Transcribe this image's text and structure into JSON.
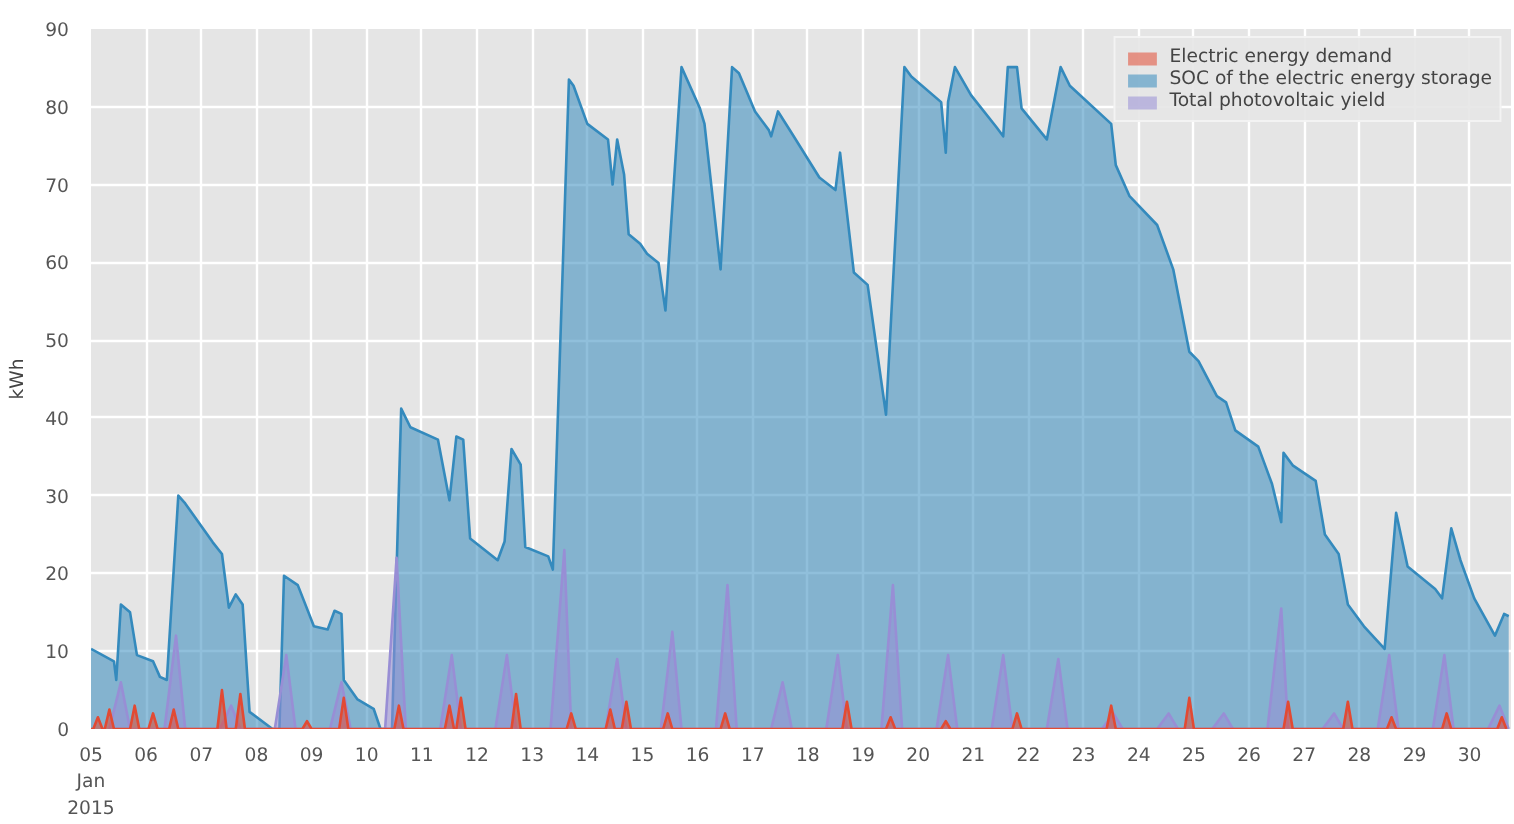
{
  "chart_data": {
    "type": "area",
    "ylabel": "kWh",
    "xlim": [
      "2015-01-05T00:00",
      "2015-01-30T18:00"
    ],
    "ylim": [
      0,
      90
    ],
    "yticks": [
      0,
      10,
      20,
      30,
      40,
      50,
      60,
      70,
      80,
      90
    ],
    "xticks": [
      {
        "value": "2015-01-05",
        "label": "05\nJan\n2015"
      },
      {
        "value": "2015-01-06",
        "label": "06"
      },
      {
        "value": "2015-01-07",
        "label": "07"
      },
      {
        "value": "2015-01-08",
        "label": "08"
      },
      {
        "value": "2015-01-09",
        "label": "09"
      },
      {
        "value": "2015-01-10",
        "label": "10"
      },
      {
        "value": "2015-01-11",
        "label": "11"
      },
      {
        "value": "2015-01-12",
        "label": "12"
      },
      {
        "value": "2015-01-13",
        "label": "13"
      },
      {
        "value": "2015-01-14",
        "label": "14"
      },
      {
        "value": "2015-01-15",
        "label": "15"
      },
      {
        "value": "2015-01-16",
        "label": "16"
      },
      {
        "value": "2015-01-17",
        "label": "17"
      },
      {
        "value": "2015-01-18",
        "label": "18"
      },
      {
        "value": "2015-01-19",
        "label": "19"
      },
      {
        "value": "2015-01-20",
        "label": "20"
      },
      {
        "value": "2015-01-21",
        "label": "21"
      },
      {
        "value": "2015-01-22",
        "label": "22"
      },
      {
        "value": "2015-01-23",
        "label": "23"
      },
      {
        "value": "2015-01-24",
        "label": "24"
      },
      {
        "value": "2015-01-25",
        "label": "25"
      },
      {
        "value": "2015-01-26",
        "label": "26"
      },
      {
        "value": "2015-01-27",
        "label": "27"
      },
      {
        "value": "2015-01-28",
        "label": "28"
      },
      {
        "value": "2015-01-29",
        "label": "29"
      },
      {
        "value": "2015-01-30",
        "label": "30"
      }
    ],
    "grid": true,
    "legend": "top right",
    "series": [
      {
        "name": "Electric energy demand",
        "color": "#e24a33",
        "x": [
          "2015-01-05T00:00",
          "2015-01-05T01:00",
          "2015-01-05T03:00",
          "2015-01-05T05:00",
          "2015-01-05T06:00",
          "2015-01-05T08:00",
          "2015-01-05T10:00",
          "2015-01-05T17:00",
          "2015-01-05T19:00",
          "2015-01-05T21:00",
          "2015-01-06T01:00",
          "2015-01-06T03:00",
          "2015-01-06T05:00",
          "2015-01-06T10:00",
          "2015-01-06T12:00",
          "2015-01-06T14:00",
          "2015-01-07T07:00",
          "2015-01-07T09:00",
          "2015-01-07T11:00",
          "2015-01-07T15:00",
          "2015-01-07T17:00",
          "2015-01-07T19:00",
          "2015-01-08T20:00",
          "2015-01-08T22:00",
          "2015-01-09T00:00",
          "2015-01-09T12:00",
          "2015-01-09T14:00",
          "2015-01-09T16:00",
          "2015-01-10T12:00",
          "2015-01-10T14:00",
          "2015-01-10T16:00",
          "2015-01-11T10:00",
          "2015-01-11T12:00",
          "2015-01-11T14:00",
          "2015-01-11T15:00",
          "2015-01-11T17:00",
          "2015-01-11T19:00",
          "2015-01-12T15:00",
          "2015-01-12T17:00",
          "2015-01-12T19:00",
          "2015-01-13T15:00",
          "2015-01-13T17:00",
          "2015-01-13T19:00",
          "2015-01-14T08:00",
          "2015-01-14T10:00",
          "2015-01-14T12:00",
          "2015-01-14T15:00",
          "2015-01-14T17:00",
          "2015-01-14T19:00",
          "2015-01-15T09:00",
          "2015-01-15T11:00",
          "2015-01-15T13:00",
          "2015-01-16T10:00",
          "2015-01-16T12:00",
          "2015-01-16T14:00",
          "2015-01-18T15:00",
          "2015-01-18T17:00",
          "2015-01-18T19:00",
          "2015-01-19T10:00",
          "2015-01-19T12:00",
          "2015-01-19T14:00",
          "2015-01-20T10:00",
          "2015-01-20T12:00",
          "2015-01-20T14:00",
          "2015-01-21T17:00",
          "2015-01-21T19:00",
          "2015-01-21T21:00",
          "2015-01-23T10:00",
          "2015-01-23T12:00",
          "2015-01-23T14:00",
          "2015-01-24T20:00",
          "2015-01-24T22:00",
          "2015-01-25T00:00",
          "2015-01-26T15:00",
          "2015-01-26T17:00",
          "2015-01-26T19:00",
          "2015-01-27T17:00",
          "2015-01-27T19:00",
          "2015-01-27T21:00",
          "2015-01-28T12:00",
          "2015-01-28T14:00",
          "2015-01-28T16:00",
          "2015-01-29T12:00",
          "2015-01-29T14:00",
          "2015-01-29T16:00",
          "2015-01-30T12:00",
          "2015-01-30T14:00",
          "2015-01-30T16:00"
        ],
        "values": [
          0,
          0,
          1.5,
          0,
          0,
          2.5,
          0,
          0,
          3,
          0,
          0,
          2,
          0,
          0,
          2.5,
          0,
          0,
          5,
          0,
          0,
          4.5,
          0,
          0,
          1,
          0,
          0,
          4,
          0,
          0,
          3,
          0,
          0,
          3,
          0,
          0,
          4,
          0,
          0,
          4.5,
          0,
          0,
          2,
          0,
          0,
          2.5,
          0,
          0,
          3.5,
          0,
          0,
          2,
          0,
          0,
          2,
          0,
          0,
          3.5,
          0,
          0,
          1.5,
          0,
          0,
          1,
          0,
          0,
          2,
          0,
          0,
          3,
          0,
          0,
          4,
          0,
          0,
          3.5,
          0,
          0,
          3.5,
          0,
          0,
          1.5,
          0,
          0,
          2,
          0,
          0,
          1.5,
          0
        ]
      },
      {
        "name": "SOC of the electric energy storage",
        "color": "#348abd",
        "x": [
          "2015-01-05T00:00",
          "2015-01-05T10:00",
          "2015-01-05T11:00",
          "2015-01-05T13:00",
          "2015-01-05T17:00",
          "2015-01-05T20:00",
          "2015-01-06T03:00",
          "2015-01-06T06:00",
          "2015-01-06T09:00",
          "2015-01-06T14:00",
          "2015-01-06T17:00",
          "2015-01-07T05:00",
          "2015-01-07T09:00",
          "2015-01-07T12:00",
          "2015-01-07T15:00",
          "2015-01-07T18:00",
          "2015-01-07T21:00",
          "2015-01-08T07:00",
          "2015-01-08T10:00",
          "2015-01-08T12:00",
          "2015-01-08T18:00",
          "2015-01-09T01:00",
          "2015-01-09T07:00",
          "2015-01-09T10:00",
          "2015-01-09T13:00",
          "2015-01-09T14:00",
          "2015-01-09T20:00",
          "2015-01-10T03:00",
          "2015-01-10T06:00",
          "2015-01-10T11:00",
          "2015-01-10T15:00",
          "2015-01-10T19:00",
          "2015-01-11T07:00",
          "2015-01-11T12:00",
          "2015-01-11T15:00",
          "2015-01-11T18:00",
          "2015-01-11T21:00",
          "2015-01-12T09:00",
          "2015-01-12T12:00",
          "2015-01-12T15:00",
          "2015-01-12T19:00",
          "2015-01-12T21:00",
          "2015-01-13T07:00",
          "2015-01-13T09:00",
          "2015-01-13T16:00",
          "2015-01-13T18:00",
          "2015-01-14T00:00",
          "2015-01-14T09:00",
          "2015-01-14T11:00",
          "2015-01-14T13:00",
          "2015-01-14T16:00",
          "2015-01-14T18:00",
          "2015-01-14T23:00",
          "2015-01-15T02:00",
          "2015-01-15T07:00",
          "2015-01-15T10:00",
          "2015-01-15T17:00",
          "2015-01-16T01:00",
          "2015-01-16T03:00",
          "2015-01-16T10:00",
          "2015-01-16T15:00",
          "2015-01-16T18:00",
          "2015-01-17T01:00",
          "2015-01-17T07:00",
          "2015-01-17T08:00",
          "2015-01-17T11:00",
          "2015-01-17T17:00",
          "2015-01-18T05:00",
          "2015-01-18T12:00",
          "2015-01-18T14:00",
          "2015-01-18T16:00",
          "2015-01-18T20:00",
          "2015-01-19T02:00",
          "2015-01-19T10:00",
          "2015-01-19T18:00",
          "2015-01-19T21:00",
          "2015-01-20T10:00",
          "2015-01-20T12:00",
          "2015-01-20T13:00",
          "2015-01-20T16:00",
          "2015-01-20T23:00",
          "2015-01-21T10:00",
          "2015-01-21T13:00",
          "2015-01-21T15:00",
          "2015-01-21T19:00",
          "2015-01-21T21:00",
          "2015-01-22T08:00",
          "2015-01-22T14:00",
          "2015-01-22T18:00",
          "2015-01-23T12:00",
          "2015-01-23T14:00",
          "2015-01-23T20:00",
          "2015-01-24T08:00",
          "2015-01-24T15:00",
          "2015-01-24T22:00",
          "2015-01-25T02:00",
          "2015-01-25T10:00",
          "2015-01-25T14:00",
          "2015-01-25T18:00",
          "2015-01-26T04:00",
          "2015-01-26T10:00",
          "2015-01-26T14:00",
          "2015-01-26T15:00",
          "2015-01-26T19:00",
          "2015-01-27T05:00",
          "2015-01-27T09:00",
          "2015-01-27T15:00",
          "2015-01-27T19:00",
          "2015-01-28T02:00",
          "2015-01-28T11:00",
          "2015-01-28T16:00",
          "2015-01-28T21:00",
          "2015-01-29T09:00",
          "2015-01-29T12:00",
          "2015-01-29T16:00",
          "2015-01-29T20:00",
          "2015-01-30T02:00",
          "2015-01-30T11:00",
          "2015-01-30T15:00",
          "2015-01-30T17:00"
        ],
        "values": [
          10.3,
          8.7,
          6.3,
          16,
          15,
          9.5,
          8.7,
          6.7,
          6.3,
          30,
          29,
          24,
          22.5,
          15.6,
          17.3,
          16,
          2.2,
          0,
          0,
          19.7,
          18.5,
          13.2,
          12.8,
          15.2,
          14.8,
          6.3,
          3.8,
          2.6,
          0,
          0,
          41.2,
          38.8,
          37.2,
          29.4,
          37.6,
          37.2,
          24.5,
          21.7,
          24.1,
          36,
          34,
          23.4,
          22.2,
          20.5,
          83.5,
          82.7,
          77.8,
          75.8,
          70,
          75.8,
          71.3,
          63.6,
          62.4,
          61.1,
          59.9,
          53.8,
          85.1,
          79.8,
          77.8,
          59.1,
          85.1,
          84.3,
          79.4,
          77,
          76.2,
          79.4,
          76.6,
          70.9,
          69.3,
          74.1,
          68.9,
          58.7,
          57.1,
          40.4,
          85.1,
          83.9,
          80.6,
          74.1,
          80.6,
          85.1,
          81.5,
          77.4,
          76.2,
          85.1,
          85.1,
          79.8,
          75.8,
          85.1,
          82.7,
          77.8,
          72.5,
          68.5,
          64.8,
          59.1,
          48.5,
          47.3,
          42.8,
          42,
          38.4,
          36.3,
          31.5,
          26.6,
          35.5,
          33.9,
          31.9,
          25,
          22.5,
          16,
          13.2,
          10.3,
          27.8,
          20.9,
          18,
          16.8,
          25.8,
          21.7,
          16.8,
          12,
          14.8,
          14.5
        ]
      },
      {
        "name": "Total photovoltaic yield",
        "color": "#988ed5",
        "x": [
          "2015-01-05T08:00",
          "2015-01-05T13:00",
          "2015-01-05T17:00",
          "2015-01-06T08:00",
          "2015-01-06T13:00",
          "2015-01-06T17:00",
          "2015-01-07T08:00",
          "2015-01-07T13:00",
          "2015-01-07T17:00",
          "2015-01-08T08:00",
          "2015-01-08T13:00",
          "2015-01-08T17:00",
          "2015-01-09T08:00",
          "2015-01-09T13:00",
          "2015-01-09T17:00",
          "2015-01-10T08:00",
          "2015-01-10T13:00",
          "2015-01-10T17:00",
          "2015-01-11T08:00",
          "2015-01-11T13:00",
          "2015-01-11T17:00",
          "2015-01-12T08:00",
          "2015-01-12T13:00",
          "2015-01-12T17:00",
          "2015-01-13T08:00",
          "2015-01-13T14:00",
          "2015-01-13T17:00",
          "2015-01-14T08:00",
          "2015-01-14T13:00",
          "2015-01-14T17:00",
          "2015-01-15T08:00",
          "2015-01-15T13:00",
          "2015-01-15T17:00",
          "2015-01-16T08:00",
          "2015-01-16T13:00",
          "2015-01-16T17:00",
          "2015-01-17T08:00",
          "2015-01-17T13:00",
          "2015-01-17T17:00",
          "2015-01-18T08:00",
          "2015-01-18T13:00",
          "2015-01-18T17:00",
          "2015-01-19T08:00",
          "2015-01-19T13:00",
          "2015-01-19T17:00",
          "2015-01-20T08:00",
          "2015-01-20T13:00",
          "2015-01-20T17:00",
          "2015-01-21T08:00",
          "2015-01-21T13:00",
          "2015-01-21T17:00",
          "2015-01-22T08:00",
          "2015-01-22T13:00",
          "2015-01-22T17:00",
          "2015-01-23T08:00",
          "2015-01-23T13:00",
          "2015-01-23T17:00",
          "2015-01-24T08:00",
          "2015-01-24T13:00",
          "2015-01-24T17:00",
          "2015-01-25T08:00",
          "2015-01-25T13:00",
          "2015-01-25T17:00",
          "2015-01-26T08:00",
          "2015-01-26T14:00",
          "2015-01-26T17:00",
          "2015-01-27T08:00",
          "2015-01-27T13:00",
          "2015-01-27T17:00",
          "2015-01-28T08:00",
          "2015-01-28T13:00",
          "2015-01-28T17:00",
          "2015-01-29T08:00",
          "2015-01-29T13:00",
          "2015-01-29T17:00",
          "2015-01-30T08:00",
          "2015-01-30T13:00",
          "2015-01-30T17:00"
        ],
        "values": [
          0,
          6,
          0,
          0,
          12,
          0,
          0,
          3,
          0,
          0,
          9.5,
          0,
          0,
          6,
          0,
          0,
          22,
          0,
          0,
          9.5,
          0,
          0,
          9.5,
          0,
          0,
          23,
          0,
          0,
          9,
          0,
          0,
          12.5,
          0,
          0,
          18.5,
          0,
          0,
          6,
          0,
          0,
          9.5,
          0,
          0,
          18.5,
          0,
          0,
          9.5,
          0,
          0,
          9.5,
          0,
          0,
          9,
          0,
          0,
          2,
          0,
          0,
          2,
          0,
          0,
          2,
          0,
          0,
          15.5,
          0,
          0,
          2,
          0,
          0,
          9.5,
          0,
          0,
          9.5,
          0,
          0,
          3,
          0
        ]
      }
    ]
  }
}
